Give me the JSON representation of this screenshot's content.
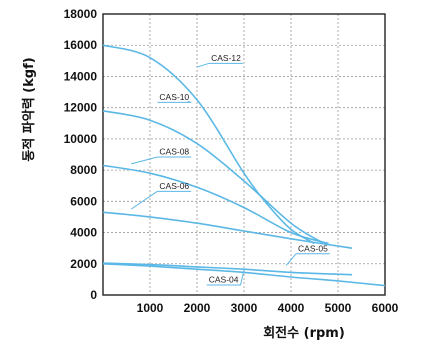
{
  "chart_data": {
    "type": "line",
    "title": "",
    "xlabel": "회전수 (rpm)",
    "ylabel": "동적 파악력 (kgf)",
    "xlim": [
      0,
      6000
    ],
    "ylim": [
      0,
      18000
    ],
    "x_ticks": [
      "1000",
      "2000",
      "3000",
      "4000",
      "5000",
      "6000"
    ],
    "y_ticks": [
      "0",
      "2000",
      "4000",
      "6000",
      "8000",
      "10000",
      "12000",
      "14000",
      "16000",
      "18000"
    ],
    "grid": true,
    "series_color": "#5bb8e6",
    "series": [
      {
        "name": "CAS-12",
        "x": [
          0,
          1000,
          2000,
          3000,
          3500,
          4000,
          4500
        ],
        "y": [
          16000,
          15200,
          12500,
          7800,
          5800,
          4200,
          3300
        ]
      },
      {
        "name": "CAS-10",
        "x": [
          0,
          1000,
          2000,
          3000,
          4000,
          4700
        ],
        "y": [
          11800,
          11200,
          9700,
          7300,
          4600,
          3300
        ]
      },
      {
        "name": "CAS-08",
        "x": [
          0,
          1000,
          2000,
          3000,
          4000,
          4800
        ],
        "y": [
          8300,
          7800,
          6900,
          5600,
          4000,
          3300
        ]
      },
      {
        "name": "CAS-06",
        "x": [
          0,
          1000,
          2000,
          3000,
          4000,
          5300
        ],
        "y": [
          5300,
          5000,
          4600,
          4100,
          3600,
          3000
        ]
      },
      {
        "name": "CAS-05",
        "x": [
          0,
          1000,
          2000,
          3000,
          4000,
          5300
        ],
        "y": [
          2050,
          1950,
          1800,
          1650,
          1450,
          1300
        ]
      },
      {
        "name": "CAS-04",
        "x": [
          0,
          1000,
          2000,
          3000,
          4000,
          5000,
          6000
        ],
        "y": [
          2000,
          1850,
          1650,
          1450,
          1150,
          900,
          600
        ]
      }
    ],
    "labels": [
      {
        "series": "CAS-12",
        "text": "CAS-12",
        "x": 2300,
        "y": 15000,
        "leader_to": [
          2000,
          14600
        ]
      },
      {
        "series": "CAS-10",
        "text": "CAS-10",
        "x": 1200,
        "y": 12500,
        "leader_to": [
          1800,
          12400
        ]
      },
      {
        "series": "CAS-08",
        "x": 1200,
        "y": 9000,
        "text": "CAS-08",
        "leader_to": [
          600,
          8400
        ]
      },
      {
        "series": "CAS-06",
        "x": 1200,
        "y": 6800,
        "text": "CAS-06",
        "leader_to": [
          600,
          5500
        ]
      },
      {
        "series": "CAS-05",
        "x": 4150,
        "y": 2800,
        "text": "CAS-05",
        "leader_to": [
          3900,
          1900
        ]
      },
      {
        "series": "CAS-04",
        "x": 2250,
        "y": 800,
        "text": "CAS-04",
        "leader_to": [
          3000,
          1600
        ]
      }
    ]
  }
}
